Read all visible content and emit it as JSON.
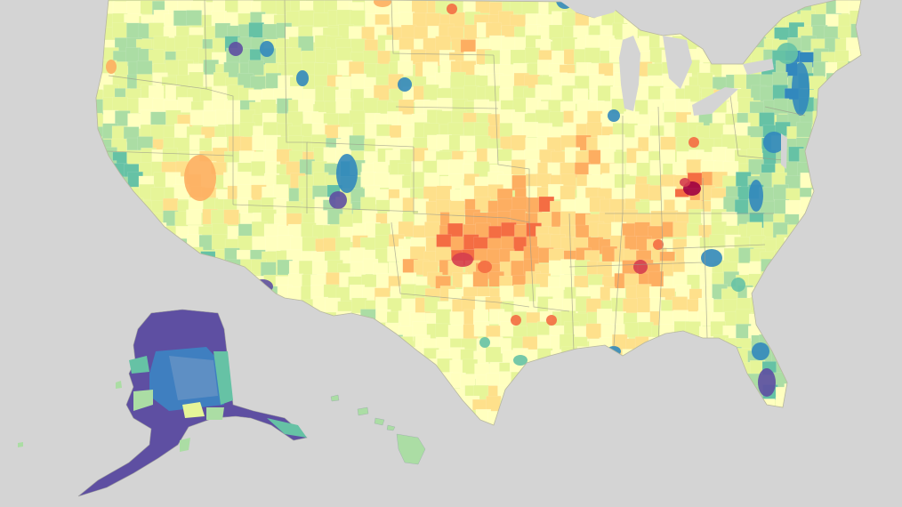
{
  "map": {
    "background_color": "#d4d4d4",
    "palette_low_to_high": [
      "#5e4fa2",
      "#3288bd",
      "#66c2a5",
      "#abdda4",
      "#e6f598",
      "#ffffbf",
      "#fee08b",
      "#fdae61",
      "#f46d43",
      "#d53e4f",
      "#9e0142"
    ],
    "regions": [
      {
        "name": "contiguous-us"
      },
      {
        "name": "alaska"
      },
      {
        "name": "hawaii"
      }
    ]
  }
}
